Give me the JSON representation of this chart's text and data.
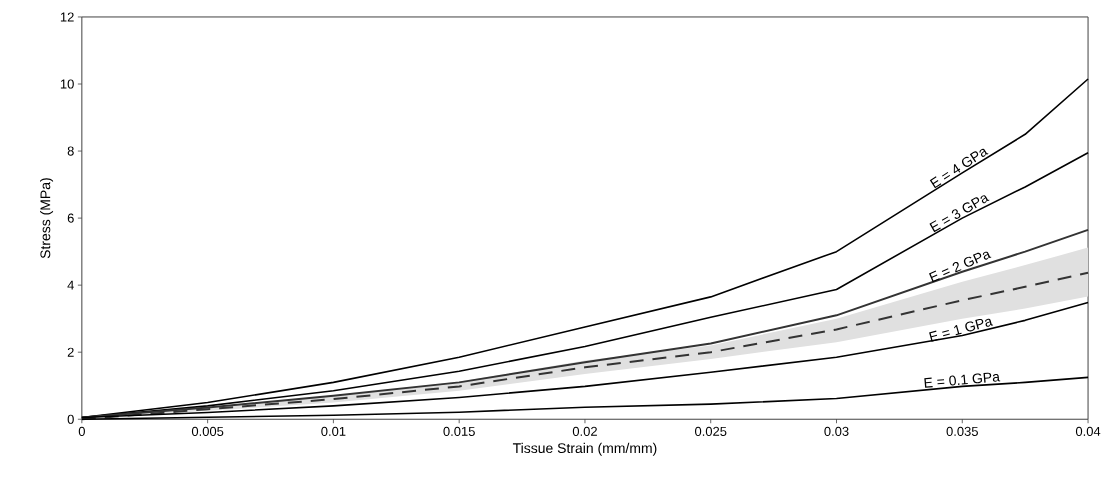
{
  "chart_data": {
    "type": "line",
    "xlabel": "Tissue Strain (mm/mm)",
    "ylabel": "Stress (MPa)",
    "x": [
      0,
      0.005,
      0.01,
      0.015,
      0.02,
      0.025,
      0.03,
      0.035,
      0.0375,
      0.04
    ],
    "series": [
      {
        "name": "E = 4 GPa",
        "color": "#000000",
        "values": [
          0.05,
          0.5,
          1.1,
          1.85,
          2.75,
          3.65,
          5.0,
          7.35,
          8.5,
          10.15
        ]
      },
      {
        "name": "E = 3 GPa",
        "color": "#000000",
        "values": [
          0.05,
          0.4,
          0.85,
          1.43,
          2.17,
          3.04,
          3.87,
          6.0,
          6.93,
          7.95
        ]
      },
      {
        "name": "E = 2 GPa",
        "color": "#333333",
        "values": [
          0.05,
          0.35,
          0.7,
          1.1,
          1.7,
          2.26,
          3.1,
          4.4,
          5.0,
          5.65
        ]
      },
      {
        "color": "#333333",
        "line_style": "dashed",
        "values": [
          0,
          0.3,
          0.6,
          0.98,
          1.55,
          2.0,
          2.68,
          3.55,
          3.95,
          4.37
        ],
        "lower": [
          0,
          0.25,
          0.5,
          0.85,
          1.35,
          1.8,
          2.3,
          3.0,
          3.3,
          3.66
        ],
        "upper": [
          0.05,
          0.35,
          0.7,
          1.12,
          1.75,
          2.2,
          3.0,
          4.1,
          4.6,
          5.12
        ]
      },
      {
        "name": "E = 1 GPa",
        "color": "#000000",
        "values": [
          0.05,
          0.2,
          0.4,
          0.65,
          0.98,
          1.4,
          1.85,
          2.5,
          2.95,
          3.48
        ]
      },
      {
        "name": "E = 0.1 GPa",
        "color": "#000000",
        "values": [
          0,
          0.06,
          0.12,
          0.21,
          0.36,
          0.45,
          0.62,
          0.98,
          1.1,
          1.25
        ]
      }
    ],
    "xlim": [
      0,
      0.04
    ],
    "ylim": [
      0,
      12
    ],
    "xticks": [
      0,
      0.005,
      0.01,
      0.015,
      0.02,
      0.025,
      0.03,
      0.035,
      0.04
    ],
    "yticks": [
      0,
      2,
      4,
      6,
      8,
      10,
      12
    ],
    "marker": "none",
    "line_style": "solid",
    "grid": false
  }
}
